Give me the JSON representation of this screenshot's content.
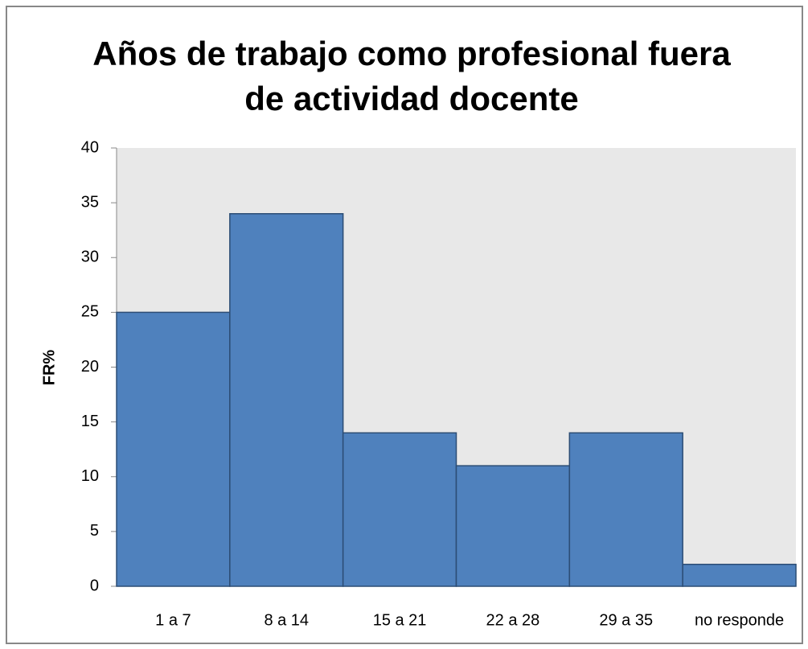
{
  "chart_data": {
    "type": "bar",
    "title": [
      "Años de trabajo como profesional fuera",
      "de actividad docente"
    ],
    "y_label": "FR%",
    "categories": [
      "1 a 7",
      "8 a 14",
      "15 a 21",
      "22 a 28",
      "29 a 35",
      "no responde"
    ],
    "values": [
      25,
      34,
      14,
      11,
      14,
      2
    ],
    "color": "#4f81bd",
    "ylim": [
      0,
      40
    ],
    "yticks": [
      0,
      5,
      10,
      15,
      20,
      25,
      30,
      35,
      40
    ],
    "grid": false
  }
}
